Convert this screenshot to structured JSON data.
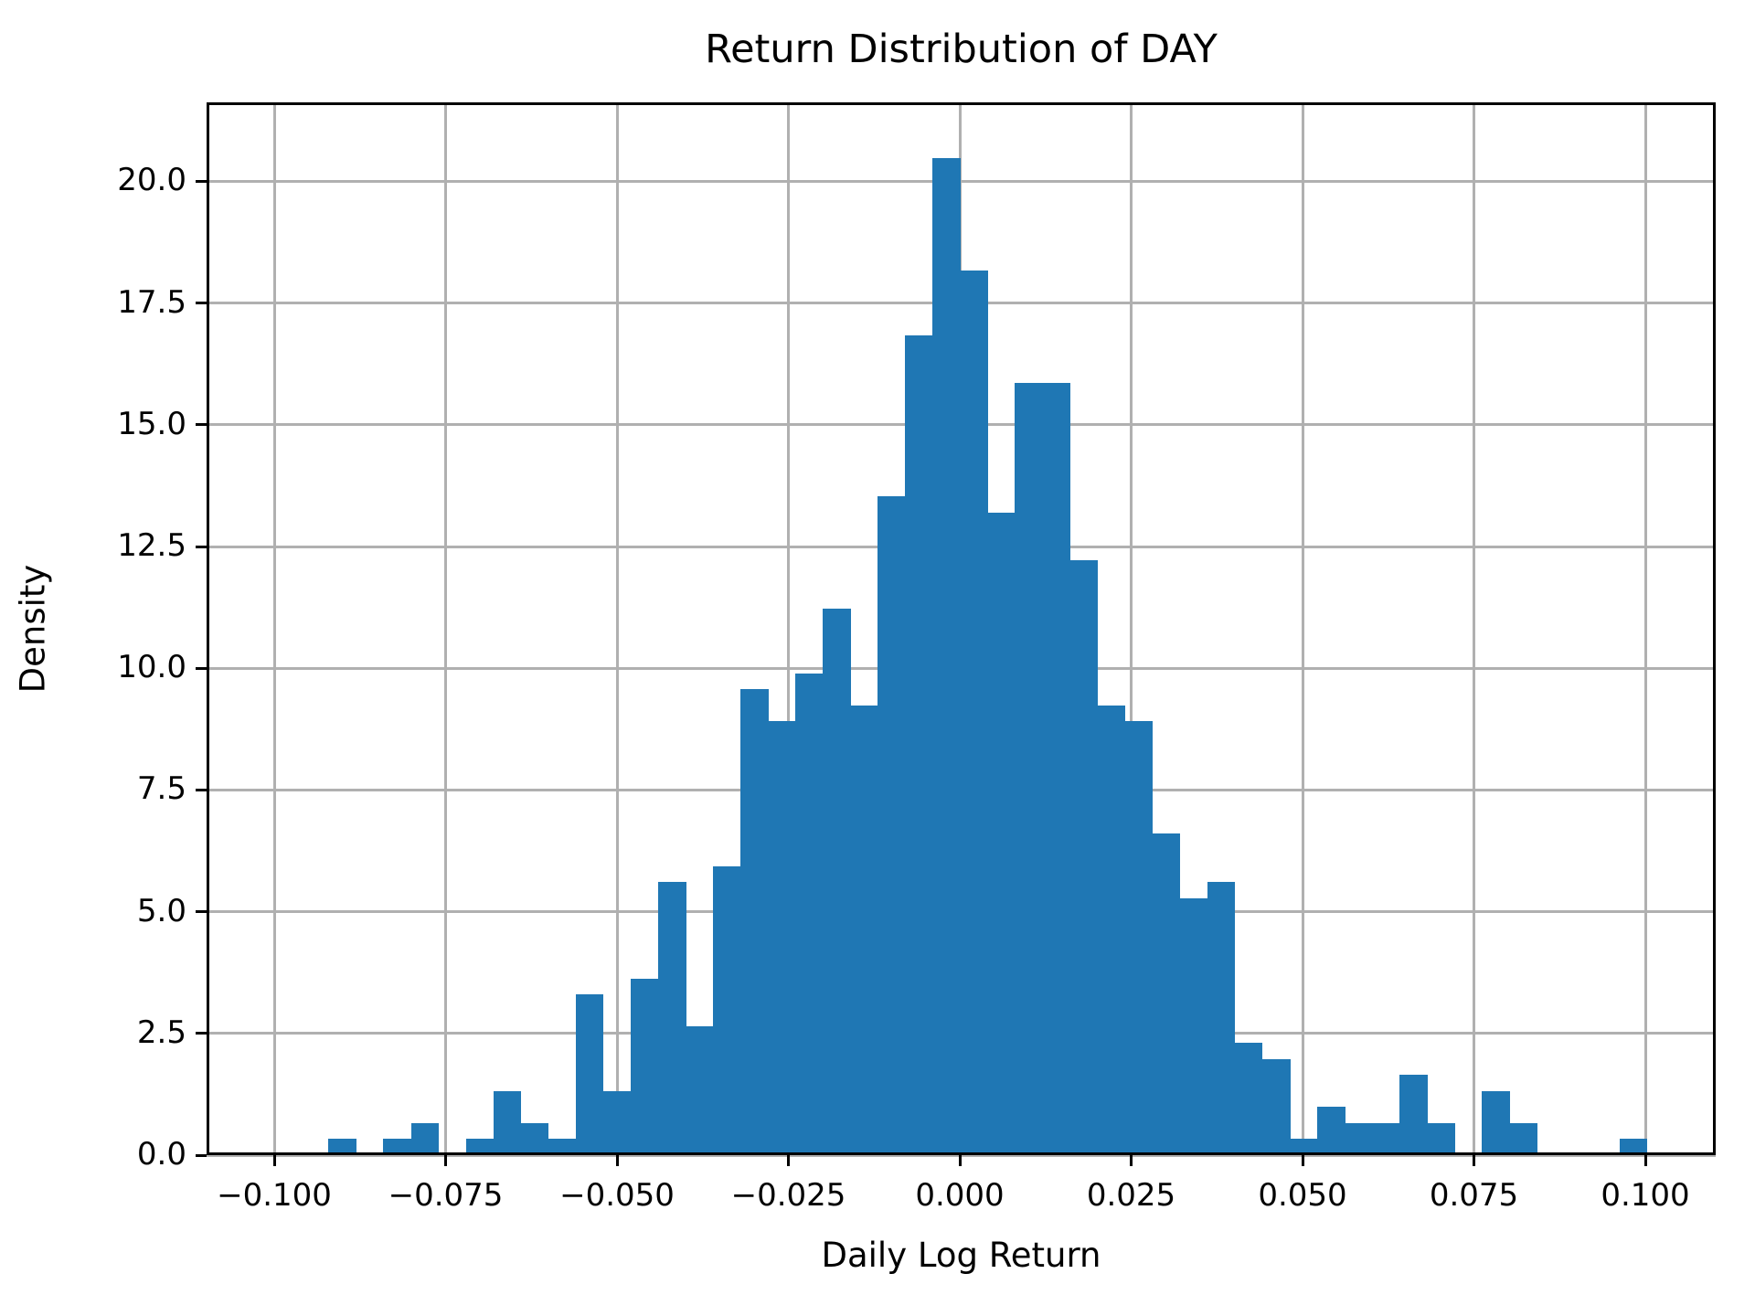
{
  "figure": {
    "title": "Return Distribution of DAY",
    "xlabel": "Daily Log Return",
    "ylabel": "Density"
  },
  "chart_data": {
    "type": "bar",
    "subtype": "histogram",
    "title": "Return Distribution of DAY",
    "xlabel": "Daily Log Return",
    "ylabel": "Density",
    "grid": true,
    "legend": "none",
    "bar_color": "#1f77b4",
    "grid_color": "#b0b0b0",
    "spine_color": "#000000",
    "background_color": "#ffffff",
    "n_bins": 48,
    "bin_width": 0.0040065,
    "xlim": [
      -0.10987,
      0.11027
    ],
    "ylim": [
      0,
      21.62
    ],
    "bin_edges": [
      -0.09209,
      -0.08809,
      -0.08408,
      -0.08007,
      -0.07607,
      -0.07206,
      -0.06806,
      -0.06405,
      -0.06004,
      -0.05604,
      -0.05203,
      -0.04802,
      -0.04402,
      -0.04001,
      -0.036,
      -0.032,
      -0.02799,
      -0.02399,
      -0.01998,
      -0.01597,
      -0.01197,
      -0.00796,
      -0.00395,
      5e-05,
      0.00406,
      0.00806,
      0.01207,
      0.01608,
      0.02008,
      0.02409,
      0.0281,
      0.0321,
      0.03611,
      0.04011,
      0.04412,
      0.04813,
      0.05213,
      0.05614,
      0.06015,
      0.06415,
      0.06816,
      0.07216,
      0.07617,
      0.08018,
      0.08418,
      0.08819,
      0.0922,
      0.0962,
      0.10021
    ],
    "densities": [
      0.33,
      0,
      0.33,
      0.66,
      0,
      0.33,
      1.32,
      0.66,
      0.33,
      3.3,
      1.32,
      3.63,
      5.61,
      2.64,
      5.94,
      9.57,
      8.91,
      9.9,
      11.22,
      9.24,
      13.53,
      16.84,
      20.47,
      18.16,
      13.2,
      15.85,
      15.85,
      12.21,
      9.24,
      8.91,
      6.6,
      5.28,
      5.61,
      2.31,
      1.98,
      0.33,
      0.99,
      0.66,
      0.66,
      1.65,
      0.66,
      0,
      1.32,
      0.66,
      0,
      0,
      0,
      0.33
    ],
    "xticks": {
      "values": [
        -0.1,
        -0.075,
        -0.05,
        -0.025,
        0.0,
        0.025,
        0.05,
        0.075,
        0.1
      ],
      "labels": [
        "−0.100",
        "−0.075",
        "−0.050",
        "−0.025",
        "0.000",
        "0.025",
        "0.050",
        "0.075",
        "0.100"
      ]
    },
    "yticks": {
      "values": [
        0.0,
        2.5,
        5.0,
        7.5,
        10.0,
        12.5,
        15.0,
        17.5,
        20.0
      ],
      "labels": [
        "0.0",
        "2.5",
        "5.0",
        "7.5",
        "10.0",
        "12.5",
        "15.0",
        "17.5",
        "20.0"
      ]
    }
  }
}
